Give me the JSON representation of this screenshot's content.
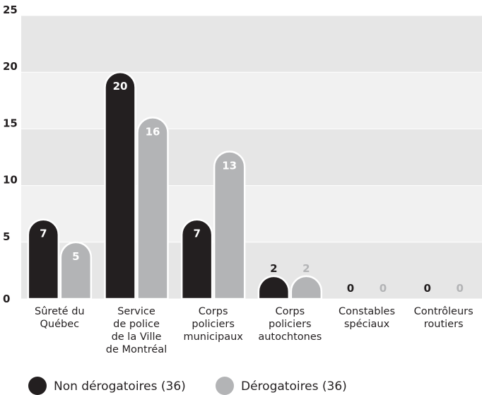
{
  "chart_data": {
    "type": "bar",
    "categories": [
      [
        "Sûreté du",
        "Québec"
      ],
      [
        "Service",
        "de police",
        "de la Ville",
        "de Montréal"
      ],
      [
        "Corps",
        "policiers",
        "municipaux"
      ],
      [
        "Corps",
        "policiers",
        "autochtones"
      ],
      [
        "Constables",
        "spéciaux"
      ],
      [
        "Contrôleurs",
        "routiers"
      ]
    ],
    "series": [
      {
        "name": "Non dérogatoires (36)",
        "color": "#231f20",
        "values": [
          7,
          20,
          7,
          2,
          0,
          0
        ]
      },
      {
        "name": "Dérogatoires (36)",
        "color": "#b3b4b6",
        "values": [
          5,
          16,
          13,
          2,
          0,
          0
        ]
      }
    ],
    "ylim": [
      0,
      25
    ],
    "yticks": [
      0,
      5,
      10,
      15,
      20,
      25
    ],
    "grid": true,
    "legend": "bottom"
  }
}
